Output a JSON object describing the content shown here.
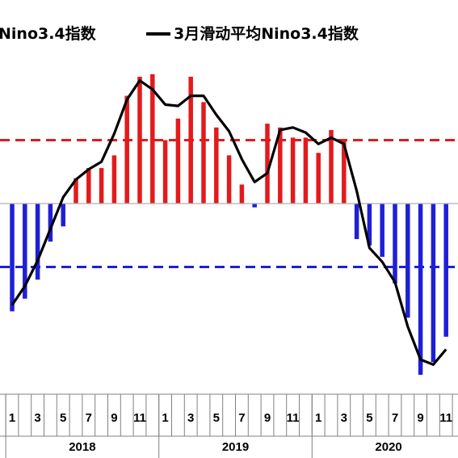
{
  "legend": {
    "bar_label": "Nino3.4指数",
    "line_label": "3月滑动平均Nino3.4指数"
  },
  "colors": {
    "positive_bar": "#e31a1c",
    "negative_bar": "#1f1fd6",
    "line": "#000000",
    "el_nino_threshold": "#e31a1c",
    "la_nina_threshold": "#1f1fd6"
  },
  "chart_data": {
    "type": "bar",
    "x_tick_labels": [
      "1",
      "3",
      "5",
      "7",
      "9",
      "11",
      "1",
      "3",
      "5",
      "7",
      "9",
      "11",
      "1",
      "3",
      "5",
      "7",
      "9",
      "11"
    ],
    "years": [
      "2018",
      "2019",
      "2020"
    ],
    "thresholds": [
      0.5,
      -0.5
    ],
    "ylim": [
      -1.6,
      2.3
    ],
    "series": [
      {
        "name": "Nino3.4指数",
        "type": "bar",
        "values": [
          -0.85,
          -0.75,
          -0.6,
          -0.3,
          -0.18,
          0.2,
          0.28,
          0.28,
          0.38,
          0.85,
          1.0,
          1.02,
          0.5,
          0.67,
          1.0,
          0.8,
          0.6,
          0.38,
          0.15,
          -0.03,
          0.63,
          0.6,
          0.52,
          0.52,
          0.4,
          0.58,
          0.5,
          -0.28,
          -0.33,
          -0.42,
          -0.63,
          -0.9,
          -1.35,
          -1.25,
          -1.05
        ]
      },
      {
        "name": "3月滑动平均Nino3.4指数",
        "type": "line",
        "values": [
          -0.8,
          -0.65,
          -0.45,
          -0.2,
          0.05,
          0.19,
          0.27,
          0.33,
          0.55,
          0.82,
          0.97,
          0.9,
          0.78,
          0.77,
          0.85,
          0.85,
          0.7,
          0.57,
          0.35,
          0.17,
          0.24,
          0.58,
          0.6,
          0.56,
          0.47,
          0.52,
          0.47,
          0.1,
          -0.35,
          -0.46,
          -0.62,
          -0.97,
          -1.23,
          -1.27,
          -1.15
        ]
      }
    ]
  }
}
